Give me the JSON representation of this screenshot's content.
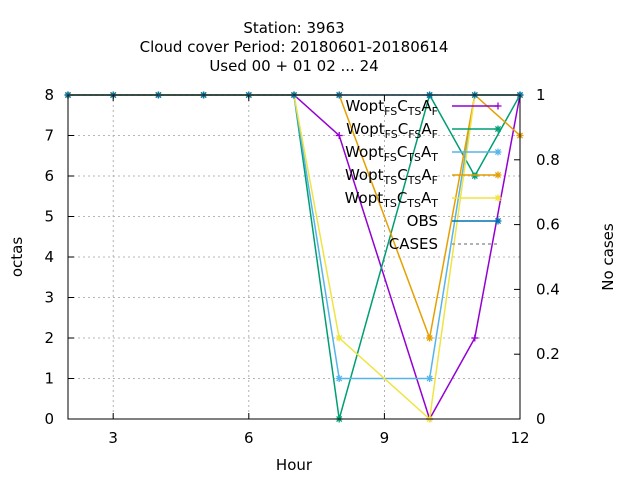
{
  "chart_data": {
    "type": "line",
    "title_lines": [
      "Station:     3963",
      "Cloud cover   Period: 20180601-20180614",
      "Used  00 + 01 02 ... 24"
    ],
    "xlabel": "Hour",
    "ylabel": "octas",
    "y2label": "No cases",
    "xlim": [
      2,
      12
    ],
    "ylim": [
      0,
      8
    ],
    "y2lim": [
      0,
      1
    ],
    "xticks": [
      3,
      6,
      9,
      12
    ],
    "yticks": [
      0,
      1,
      2,
      3,
      4,
      5,
      6,
      7,
      8
    ],
    "y2ticks": [
      0,
      0.2,
      0.4,
      0.6,
      0.8,
      1
    ],
    "y2ticklabels": [
      "0",
      "0.2",
      "0.4",
      "0.6",
      "0.8",
      "1"
    ],
    "grid": true,
    "legend_position": "top-right",
    "x": [
      2,
      3,
      4,
      5,
      6,
      7,
      8,
      10,
      11,
      12
    ],
    "series": [
      {
        "name": "Wopt FS CTS AF",
        "label_parts": [
          [
            "Wopt",
            ""
          ],
          [
            "FS",
            "sub"
          ],
          [
            "C",
            ""
          ],
          [
            "TS",
            "sub"
          ],
          [
            "A",
            ""
          ],
          [
            "F",
            "sub"
          ]
        ],
        "color": "#9400d3",
        "marker": "plus",
        "values": [
          8,
          8,
          8,
          8,
          8,
          8,
          7,
          0,
          2,
          8
        ]
      },
      {
        "name": "Wopt FS CFS AF",
        "label_parts": [
          [
            "Wopt",
            ""
          ],
          [
            "FS",
            "sub"
          ],
          [
            "C",
            ""
          ],
          [
            "FS",
            "sub"
          ],
          [
            "A",
            ""
          ],
          [
            "F",
            "sub"
          ]
        ],
        "color": "#009e73",
        "marker": "star",
        "values": [
          8,
          8,
          8,
          8,
          8,
          8,
          0,
          8,
          6,
          8
        ]
      },
      {
        "name": "Wopt FS CTS AT",
        "label_parts": [
          [
            "Wopt",
            ""
          ],
          [
            "FS",
            "sub"
          ],
          [
            "C",
            ""
          ],
          [
            "TS",
            "sub"
          ],
          [
            "A",
            ""
          ],
          [
            "T",
            "sub"
          ]
        ],
        "color": "#56b4e9",
        "marker": "star",
        "values": [
          8,
          8,
          8,
          8,
          8,
          8,
          1,
          1,
          8,
          8
        ]
      },
      {
        "name": "Wopt TS CTS AF",
        "label_parts": [
          [
            "Wopt",
            ""
          ],
          [
            "TS",
            "sub"
          ],
          [
            "C",
            ""
          ],
          [
            "TS",
            "sub"
          ],
          [
            "A",
            ""
          ],
          [
            "F",
            "sub"
          ]
        ],
        "color": "#e69f00",
        "marker": "star",
        "values": [
          8,
          8,
          8,
          8,
          8,
          8,
          8,
          2,
          8,
          7
        ]
      },
      {
        "name": "Wopt TS CTS AT",
        "label_parts": [
          [
            "Wopt",
            ""
          ],
          [
            "TS",
            "sub"
          ],
          [
            "C",
            ""
          ],
          [
            "TS",
            "sub"
          ],
          [
            "A",
            ""
          ],
          [
            "T",
            "sub"
          ]
        ],
        "color": "#f0e442",
        "marker": "star",
        "values": [
          8,
          8,
          8,
          8,
          8,
          8,
          2,
          0,
          8,
          8
        ]
      },
      {
        "name": "OBS",
        "label_parts": [
          [
            "OBS",
            ""
          ]
        ],
        "color": "#0072b2",
        "marker": "star",
        "values": [
          8,
          8,
          8,
          8,
          8,
          8,
          8,
          8,
          8,
          8
        ]
      },
      {
        "name": "CASES",
        "label_parts": [
          [
            "CASES",
            ""
          ]
        ],
        "color": "#999999",
        "marker": "none",
        "dashed": true,
        "axis": "y2",
        "values": [
          1,
          1,
          1,
          1,
          1,
          1,
          1,
          1,
          1,
          1
        ]
      }
    ]
  }
}
